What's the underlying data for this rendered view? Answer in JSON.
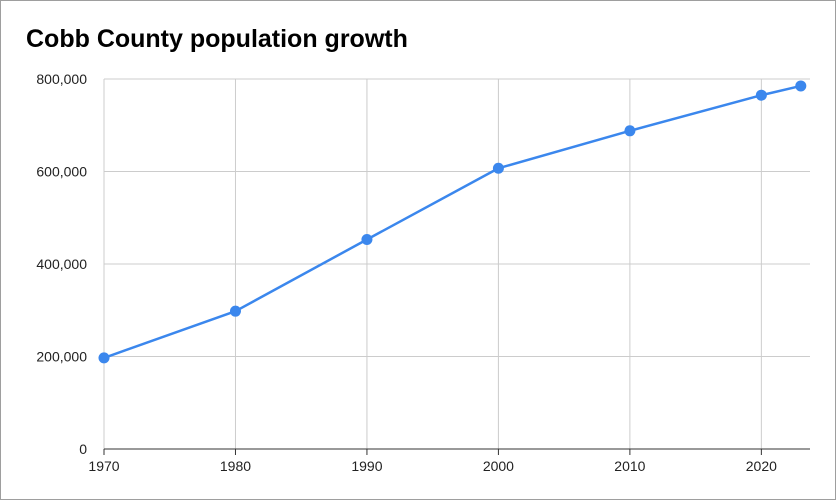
{
  "chart_data": {
    "type": "line",
    "title": "Cobb County population growth",
    "xlabel": "",
    "ylabel": "",
    "x": [
      1970,
      1980,
      1990,
      2000,
      2010,
      2020,
      2023
    ],
    "series": [
      {
        "values": [
          197000,
          298000,
          453000,
          607000,
          688000,
          765000,
          785000
        ]
      }
    ],
    "xlim": [
      1970,
      2023.7
    ],
    "ylim": [
      0,
      800000
    ],
    "x_ticks": [
      1970,
      1980,
      1990,
      2000,
      2010,
      2020
    ],
    "x_tick_labels": [
      "1970",
      "1980",
      "1990",
      "2000",
      "2010",
      "2020"
    ],
    "y_ticks": [
      0,
      200000,
      400000,
      600000,
      800000
    ],
    "y_tick_labels": [
      "0",
      "200,000",
      "400,000",
      "600,000",
      "800,000"
    ],
    "grid": true,
    "markers": true,
    "legend": "none",
    "colors": {
      "series": "#3b87ed",
      "grid": "#cccccc",
      "axis": "#333333"
    }
  }
}
